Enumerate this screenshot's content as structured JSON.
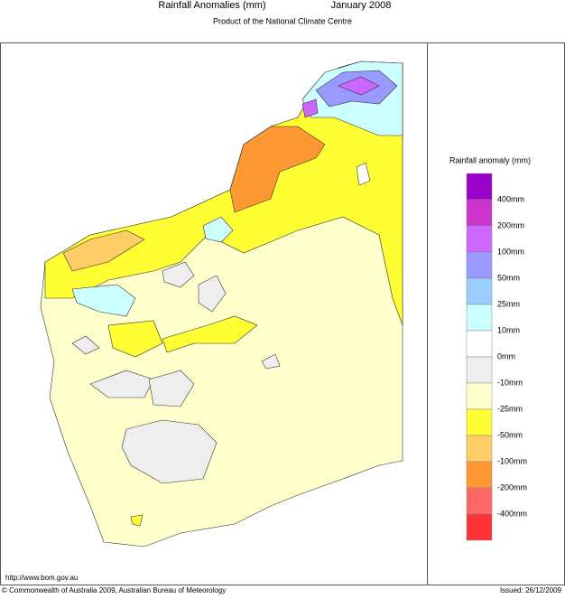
{
  "header": {
    "title": "Rainfall Anomalies (mm)",
    "period": "January 2008",
    "subtitle": "Product of the National Climate Centre"
  },
  "legend": {
    "title": "Rainfall anomaly (mm)",
    "colors": [
      "#9900cc",
      "#cc33cc",
      "#cc66ff",
      "#9999ff",
      "#99ccff",
      "#ccffff",
      "#ffffff",
      "#eeeeee",
      "#ffffcc",
      "#ffff33",
      "#ffcc66",
      "#ff9933",
      "#ff6666",
      "#ff3333"
    ],
    "labels": [
      "400mm",
      "200mm",
      "100mm",
      "50mm",
      "25mm",
      "10mm",
      "0mm",
      "-10mm",
      "-25mm",
      "-50mm",
      "-100mm",
      "-200mm",
      "-400mm"
    ]
  },
  "footer": {
    "url": "http://www.bom.gov.au",
    "copyright": "© Commonwealth of Australia 2009, Australian Bureau of Meteorology",
    "issued": "Issued: 26/12/2009"
  }
}
